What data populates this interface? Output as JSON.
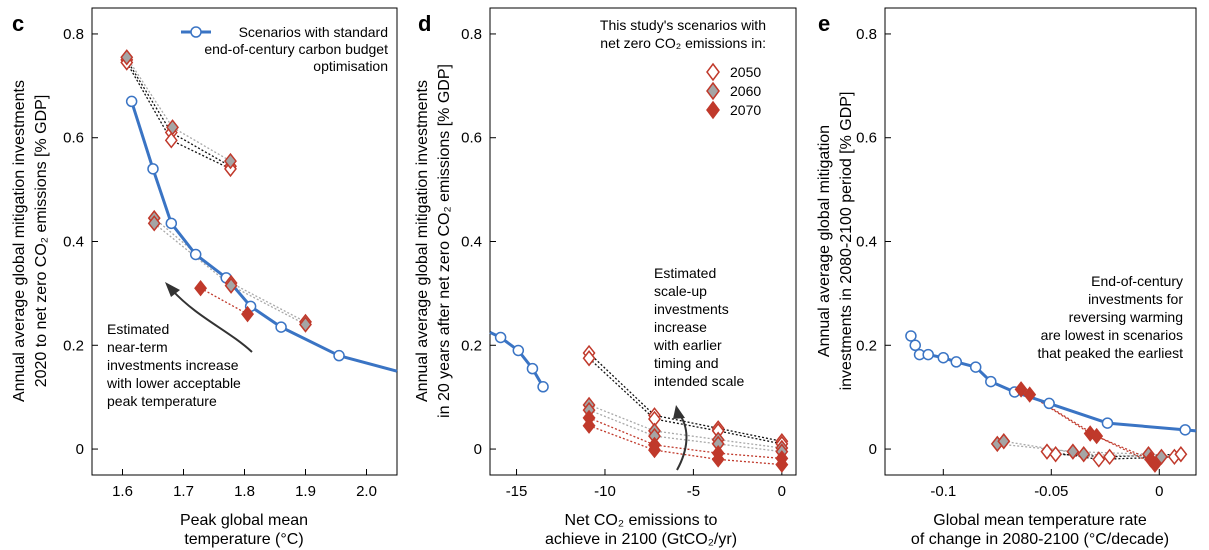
{
  "chart_data": [
    {
      "panel": "c",
      "type": "line",
      "xlabel_lines": [
        "Peak global mean",
        "temperature (°C)"
      ],
      "ylabel_lines": [
        "Annual average global mitigation investments",
        "2020 to net zero CO₂ emissions [% GDP]"
      ],
      "xlim": [
        1.55,
        2.05
      ],
      "ylim": [
        -0.05,
        0.85
      ],
      "xticks": [
        {
          "v": 1.6,
          "label": "1.6"
        },
        {
          "v": 1.7,
          "label": "1.7"
        },
        {
          "v": 1.8,
          "label": "1.8"
        },
        {
          "v": 1.9,
          "label": "1.9"
        },
        {
          "v": 2.0,
          "label": "2.0"
        }
      ],
      "yticks": [
        {
          "v": 0,
          "label": "0"
        },
        {
          "v": 0.2,
          "label": "0.2"
        },
        {
          "v": 0.4,
          "label": "0.4"
        },
        {
          "v": 0.6,
          "label": "0.6"
        },
        {
          "v": 0.8,
          "label": "0.8"
        }
      ],
      "legend": {
        "lines": [
          "Scenarios with standard",
          "end-of-century carbon budget",
          "optimisation"
        ]
      },
      "baseline": {
        "x": [
          1.615,
          1.65,
          1.68,
          1.72,
          1.77,
          1.81,
          1.86,
          1.955,
          2.05
        ],
        "y": [
          0.67,
          0.54,
          0.435,
          0.375,
          0.33,
          0.275,
          0.235,
          0.18,
          0.15
        ],
        "markers_n": 8
      },
      "groups": [
        {
          "series": "2050",
          "points": [
            {
              "x": 1.607,
              "y": 0.75
            },
            {
              "x": 1.68,
              "y": 0.61
            },
            {
              "x": 1.777,
              "y": 0.545
            }
          ]
        },
        {
          "series": "2050",
          "points": [
            {
              "x": 1.607,
              "y": 0.745
            },
            {
              "x": 1.68,
              "y": 0.595
            },
            {
              "x": 1.777,
              "y": 0.54
            }
          ]
        },
        {
          "series": "2060",
          "points": [
            {
              "x": 1.607,
              "y": 0.755
            },
            {
              "x": 1.682,
              "y": 0.62
            },
            {
              "x": 1.777,
              "y": 0.555
            }
          ]
        },
        {
          "series": "2060",
          "points": [
            {
              "x": 1.652,
              "y": 0.445
            },
            {
              "x": 1.778,
              "y": 0.32
            },
            {
              "x": 1.9,
              "y": 0.245
            }
          ]
        },
        {
          "series": "2060",
          "points": [
            {
              "x": 1.652,
              "y": 0.435
            },
            {
              "x": 1.778,
              "y": 0.315
            },
            {
              "x": 1.9,
              "y": 0.24
            }
          ]
        },
        {
          "series": "2070",
          "points": [
            {
              "x": 1.728,
              "y": 0.31
            },
            {
              "x": 1.805,
              "y": 0.26
            }
          ]
        }
      ],
      "annotation": {
        "lines": [
          "Estimated",
          "near-term",
          "investments increase",
          "with lower acceptable",
          "peak temperature"
        ]
      }
    },
    {
      "panel": "d",
      "type": "line",
      "xlabel_lines": [
        "Net CO₂ emissions to",
        "achieve in 2100 (GtCO₂/yr)"
      ],
      "ylabel_lines": [
        "Annual average global mitigation investments",
        "in 20 years after net zero CO₂ emissions [% GDP]"
      ],
      "xlim": [
        -16.5,
        0.8
      ],
      "ylim": [
        -0.05,
        0.85
      ],
      "xticks": [
        {
          "v": -15,
          "label": "-15"
        },
        {
          "v": -10,
          "label": "-10"
        },
        {
          "v": -5,
          "label": "-5"
        },
        {
          "v": 0,
          "label": "0"
        }
      ],
      "yticks": [
        {
          "v": 0,
          "label": "0"
        },
        {
          "v": 0.2,
          "label": "0.2"
        },
        {
          "v": 0.4,
          "label": "0.4"
        },
        {
          "v": 0.6,
          "label": "0.6"
        },
        {
          "v": 0.8,
          "label": "0.8"
        }
      ],
      "legend": {
        "title_lines": [
          "This study's scenarios with",
          "net zero CO₂ emissions in:"
        ],
        "entries": [
          "2050",
          "2060",
          "2070"
        ]
      },
      "baseline": {
        "x": [
          -16.5,
          -15.9,
          -14.9,
          -14.1,
          -13.5
        ],
        "y": [
          0.225,
          0.215,
          0.19,
          0.155,
          0.12
        ],
        "markers_n": 4,
        "markers_from_index": 1
      },
      "groups": [
        {
          "series": "2050",
          "points": [
            {
              "x": -10.9,
              "y": 0.185
            },
            {
              "x": -7.2,
              "y": 0.065
            },
            {
              "x": -3.6,
              "y": 0.04
            },
            {
              "x": 0,
              "y": 0.015
            }
          ]
        },
        {
          "series": "2050",
          "points": [
            {
              "x": -10.9,
              "y": 0.175
            },
            {
              "x": -7.2,
              "y": 0.058
            },
            {
              "x": -3.6,
              "y": 0.035
            },
            {
              "x": 0,
              "y": 0.01
            }
          ]
        },
        {
          "series": "2060",
          "points": [
            {
              "x": -10.9,
              "y": 0.085
            },
            {
              "x": -7.2,
              "y": 0.035
            },
            {
              "x": -3.6,
              "y": 0.018
            },
            {
              "x": 0,
              "y": 0.002
            }
          ]
        },
        {
          "series": "2060",
          "points": [
            {
              "x": -10.9,
              "y": 0.075
            },
            {
              "x": -7.2,
              "y": 0.025
            },
            {
              "x": -3.6,
              "y": 0.01
            },
            {
              "x": 0,
              "y": -0.005
            }
          ]
        },
        {
          "series": "2070",
          "points": [
            {
              "x": -10.9,
              "y": 0.06
            },
            {
              "x": -7.2,
              "y": 0.008
            },
            {
              "x": -3.6,
              "y": -0.008
            },
            {
              "x": 0,
              "y": -0.018
            }
          ]
        },
        {
          "series": "2070",
          "points": [
            {
              "x": -10.9,
              "y": 0.045
            },
            {
              "x": -7.2,
              "y": -0.002
            },
            {
              "x": -3.6,
              "y": -0.02
            },
            {
              "x": 0,
              "y": -0.03
            }
          ]
        }
      ],
      "annotation": {
        "lines": [
          "Estimated",
          "scale-up",
          "investments",
          "increase",
          "with earlier",
          "timing and",
          "intended scale"
        ]
      }
    },
    {
      "panel": "e",
      "type": "line",
      "xlabel_lines": [
        "Global mean temperature rate",
        "of change in 2080-2100 (°C/decade)"
      ],
      "ylabel_lines": [
        "Annual average global mitigation",
        "investments in 2080-2100 period [% GDP]"
      ],
      "xlim": [
        -0.127,
        0.017
      ],
      "ylim": [
        -0.05,
        0.85
      ],
      "xticks": [
        {
          "v": -0.1,
          "label": "-0.1"
        },
        {
          "v": -0.05,
          "label": "-0.05"
        },
        {
          "v": 0,
          "label": "0"
        }
      ],
      "yticks": [
        {
          "v": 0,
          "label": "0"
        },
        {
          "v": 0.2,
          "label": "0.2"
        },
        {
          "v": 0.4,
          "label": "0.4"
        },
        {
          "v": 0.6,
          "label": "0.6"
        },
        {
          "v": 0.8,
          "label": "0.8"
        }
      ],
      "baseline": {
        "x": [
          -0.115,
          -0.113,
          -0.111,
          -0.107,
          -0.1,
          -0.094,
          -0.085,
          -0.078,
          -0.067,
          -0.051,
          -0.024,
          0.012,
          0.017
        ],
        "y": [
          0.218,
          0.2,
          0.182,
          0.182,
          0.176,
          0.168,
          0.158,
          0.13,
          0.11,
          0.088,
          0.05,
          0.037,
          0.035
        ],
        "markers_n": 12
      },
      "groups": [
        {
          "series": "2050",
          "points": [
            {
              "x": -0.052,
              "y": -0.005
            },
            {
              "x": -0.028,
              "y": -0.02
            },
            {
              "x": 0.007,
              "y": -0.015
            }
          ]
        },
        {
          "series": "2050",
          "points": [
            {
              "x": -0.048,
              "y": -0.01
            },
            {
              "x": -0.023,
              "y": -0.015
            },
            {
              "x": 0.01,
              "y": -0.01
            }
          ]
        },
        {
          "series": "2060",
          "points": [
            {
              "x": -0.075,
              "y": 0.01
            },
            {
              "x": -0.04,
              "y": -0.005
            },
            {
              "x": -0.005,
              "y": -0.01
            }
          ]
        },
        {
          "series": "2060",
          "points": [
            {
              "x": -0.072,
              "y": 0.015
            },
            {
              "x": -0.035,
              "y": -0.01
            },
            {
              "x": 0.001,
              "y": -0.015
            }
          ]
        },
        {
          "series": "2070",
          "points": [
            {
              "x": -0.064,
              "y": 0.115
            },
            {
              "x": -0.032,
              "y": 0.03
            },
            {
              "x": -0.004,
              "y": -0.02
            }
          ]
        },
        {
          "series": "2070",
          "points": [
            {
              "x": -0.06,
              "y": 0.105
            },
            {
              "x": -0.029,
              "y": 0.025
            },
            {
              "x": -0.002,
              "y": -0.03
            }
          ]
        }
      ],
      "annotation": {
        "lines": [
          "End-of-century",
          "investments for",
          "reversing warming",
          "are lowest in scenarios",
          "that peaked the earliest"
        ]
      }
    }
  ],
  "colors": {
    "baseline": "#3a74c4",
    "marker_2050_stroke": "#c0392b",
    "marker_2060_fill": "#a5a5a5",
    "marker_2060_stroke": "#c0392b",
    "marker_2070_fill": "#c0392b",
    "connector_2050": "#111111",
    "connector_2060": "#a9a9a9",
    "connector_2070": "#c0392b"
  }
}
